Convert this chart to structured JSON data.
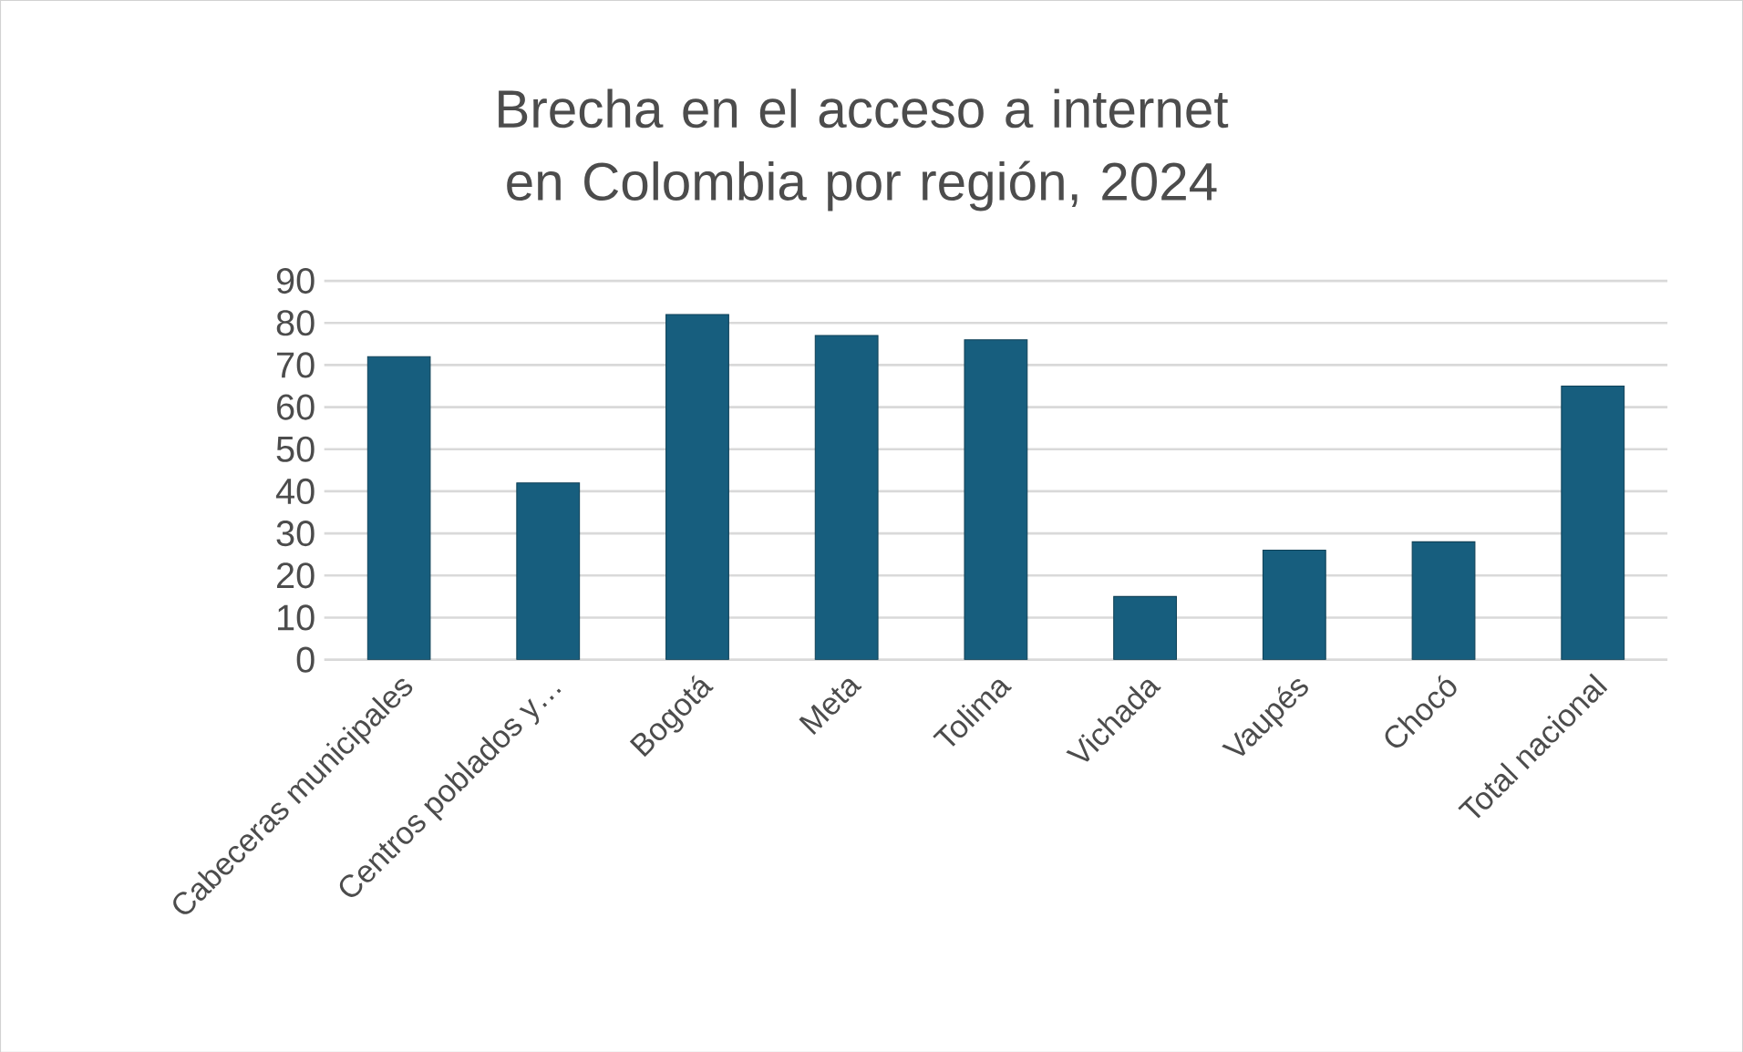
{
  "chart_data": {
    "type": "bar",
    "title": "Brecha en el acceso a internet en Colombia por región, 2024",
    "categories": [
      "Cabeceras municipales",
      "Centros poblados y…",
      "Bogotá",
      "Meta",
      "Tolima",
      "Vichada",
      "Vaupés",
      "Chocó",
      "Total nacional"
    ],
    "values": [
      72,
      42,
      82,
      77,
      76,
      15,
      26,
      28,
      65
    ],
    "color": "#175e7e",
    "ylim": [
      0,
      90
    ],
    "yticks": [
      0,
      10,
      20,
      30,
      40,
      50,
      60,
      70,
      80,
      90
    ],
    "grid": "y"
  }
}
